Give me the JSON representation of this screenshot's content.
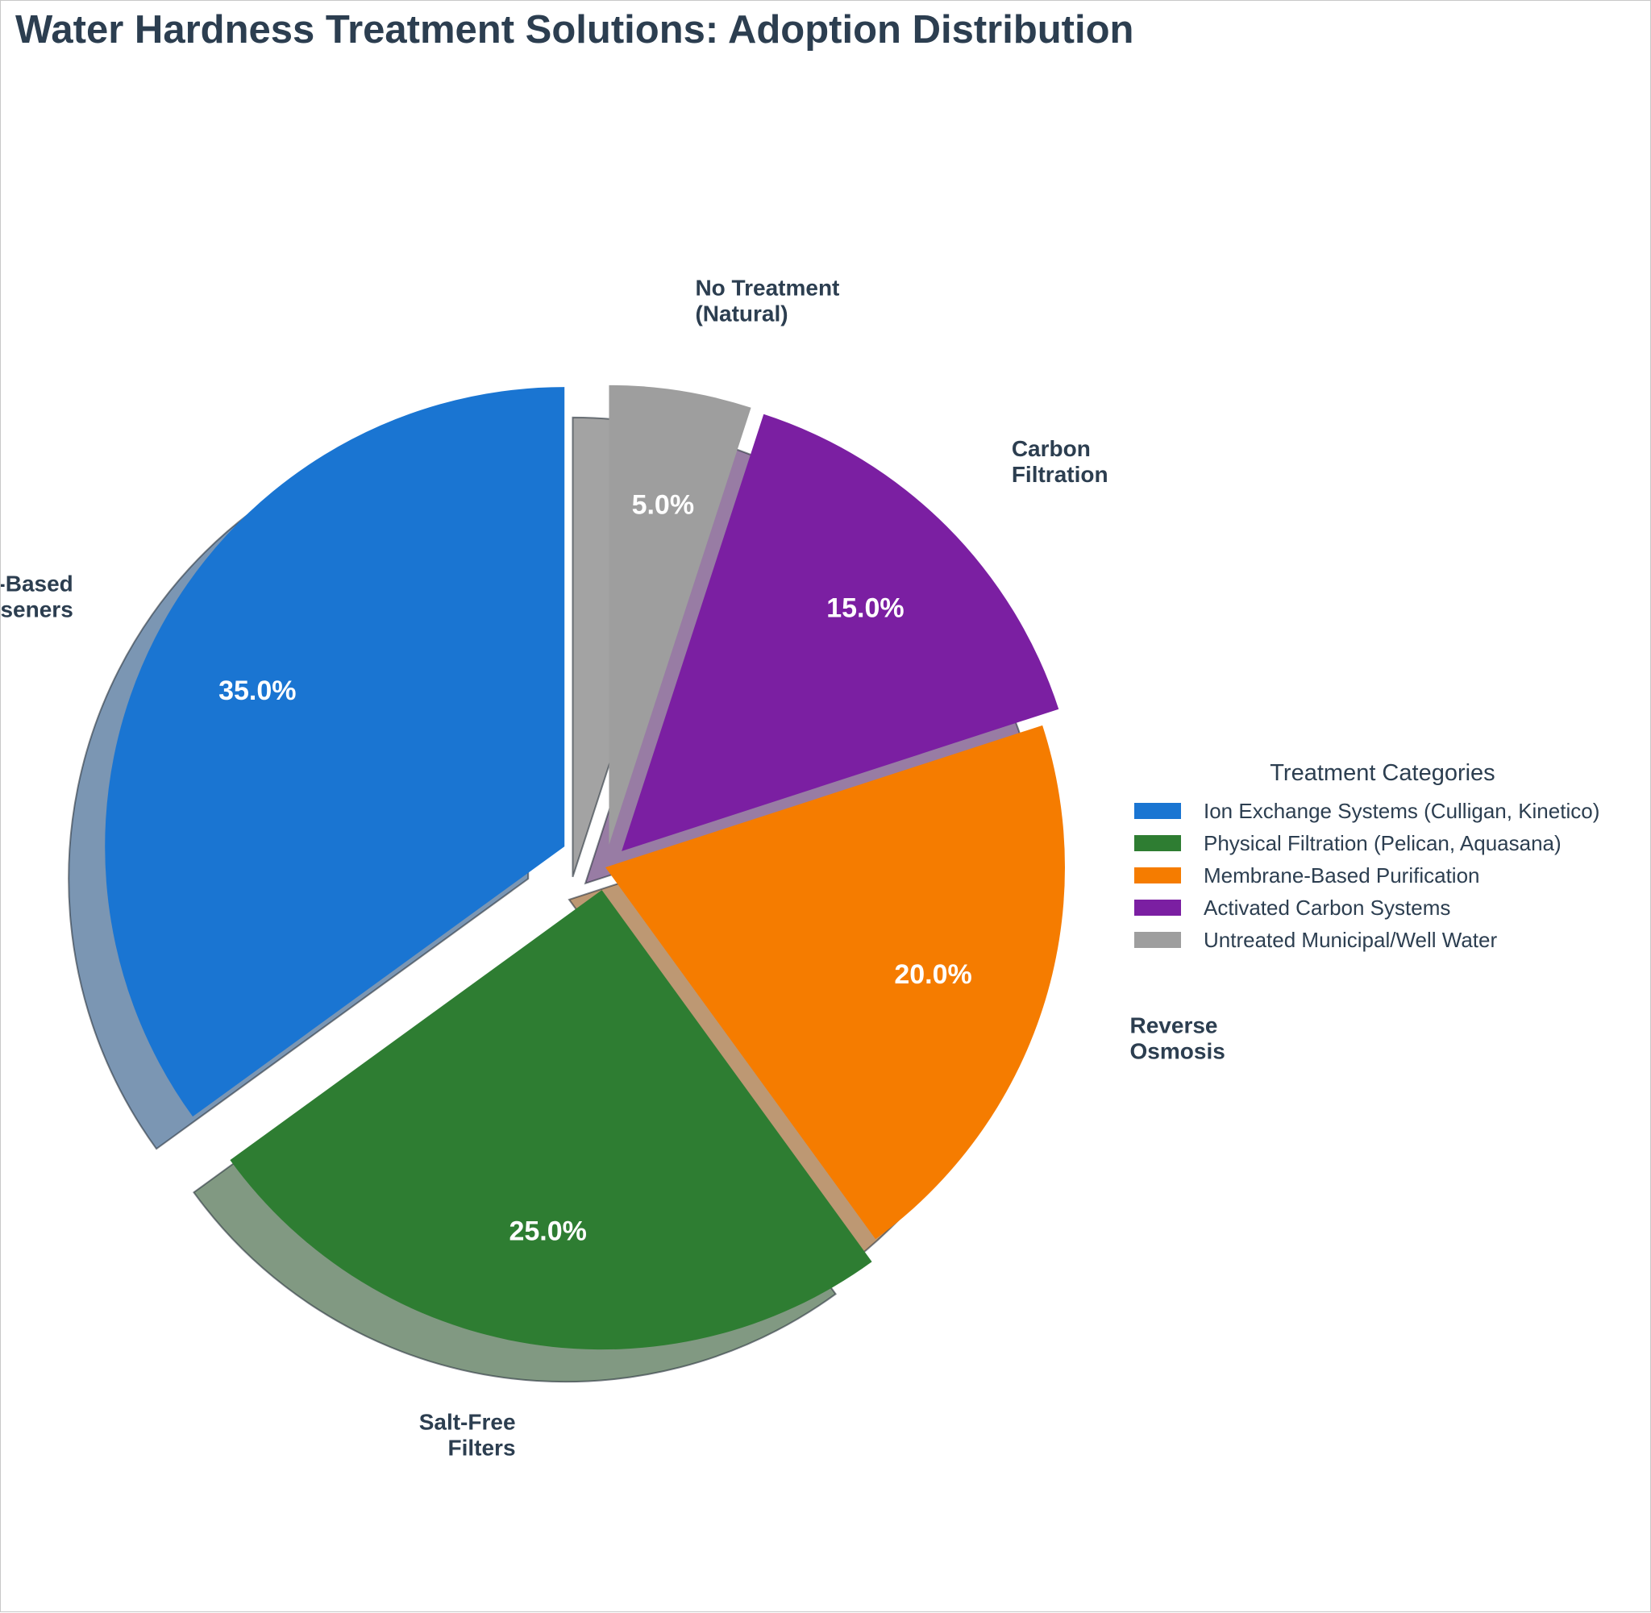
{
  "chart_data": {
    "type": "pie",
    "title": "Water Hardness Treatment Solutions: Adoption Distribution",
    "slices": [
      {
        "label": "Salt-Based\nSoftseners",
        "value": 35.0,
        "pct_text": "35.0%",
        "legend": "Ion Exchange Systems (Culligan, Kinetico)",
        "color": "#1a75d2",
        "explode": 0.1
      },
      {
        "label": "Salt-Free\nFilters",
        "value": 25.0,
        "pct_text": "25.0%",
        "legend": "Physical Filtration (Pelican, Aquasana)",
        "color": "#2e7d32",
        "explode": 0.05
      },
      {
        "label": "Reverse\nOsmosis",
        "value": 20.0,
        "pct_text": "20.0%",
        "legend": "Membrane-Based Purification",
        "color": "#f57c00",
        "explode": 0.0
      },
      {
        "label": "Carbon\nFiltration",
        "value": 15.0,
        "pct_text": "15.0%",
        "legend": "Activated Carbon Systems",
        "color": "#7b1fa2",
        "explode": 0.05
      },
      {
        "label": "No Treatment\n(Natural)",
        "value": 5.0,
        "pct_text": "5.0%",
        "legend": "Untreated Municipal/Well Water",
        "color": "#9e9e9e",
        "explode": 0.05
      }
    ],
    "start_angle_deg": 90,
    "direction": "counterclockwise",
    "shadow": true,
    "legend_title": "Treatment Categories",
    "legend_position": "right"
  }
}
